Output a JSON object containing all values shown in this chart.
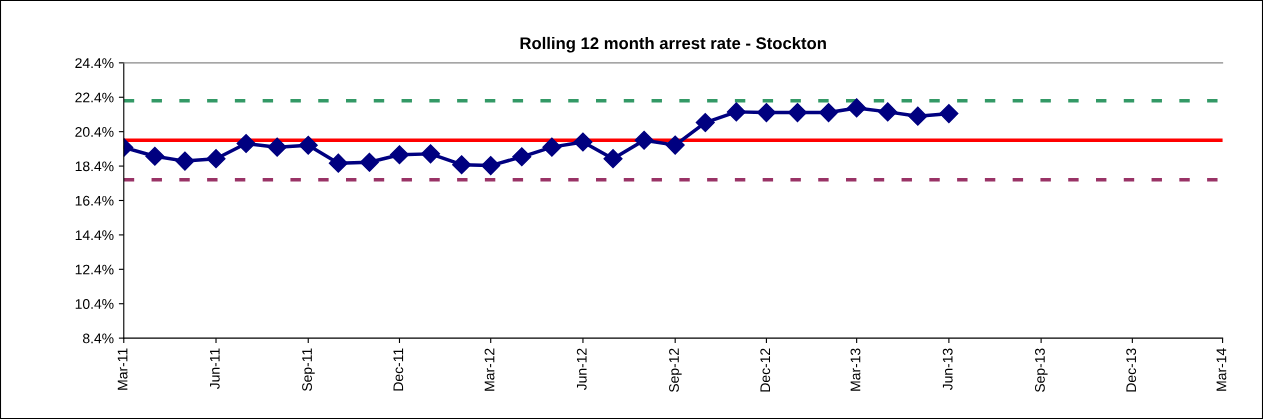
{
  "chart_data": {
    "type": "line",
    "title": "Rolling 12 month arrest rate - Stockton",
    "x": [
      "2011-03",
      "2011-04",
      "2011-05",
      "2011-06",
      "2011-07",
      "2011-08",
      "2011-09",
      "2011-10",
      "2011-11",
      "2011-12",
      "2012-01",
      "2012-02",
      "2012-03",
      "2012-04",
      "2012-05",
      "2012-06",
      "2012-07",
      "2012-08",
      "2012-09",
      "2012-10",
      "2012-11",
      "2012-12",
      "2013-01",
      "2013-02",
      "2013-03",
      "2013-04",
      "2013-05",
      "2013-06"
    ],
    "series": [
      {
        "color": "#000080",
        "values": [
          19.48,
          18.97,
          18.69,
          18.83,
          19.71,
          19.5,
          19.61,
          18.57,
          18.62,
          19.06,
          19.11,
          18.48,
          18.43,
          18.94,
          19.5,
          19.8,
          18.83,
          19.9,
          19.62,
          20.93,
          21.55,
          21.51,
          21.51,
          21.51,
          21.78,
          21.55,
          21.3,
          21.45
        ]
      }
    ],
    "marker": "diamond",
    "line_style": "solid",
    "grid": false,
    "legend": false,
    "xlim": [
      "2011-03",
      "2014-03"
    ],
    "xticks": [
      {
        "value": "2011-03",
        "label": "Mar-11"
      },
      {
        "value": "2011-06",
        "label": "Jun-11"
      },
      {
        "value": "2011-09",
        "label": "Sep-11"
      },
      {
        "value": "2011-12",
        "label": "Dec-11"
      },
      {
        "value": "2012-03",
        "label": "Mar-12"
      },
      {
        "value": "2012-06",
        "label": "Jun-12"
      },
      {
        "value": "2012-09",
        "label": "Sep-12"
      },
      {
        "value": "2012-12",
        "label": "Dec-12"
      },
      {
        "value": "2013-03",
        "label": "Mar-13"
      },
      {
        "value": "2013-06",
        "label": "Jun-13"
      },
      {
        "value": "2013-09",
        "label": "Sep-13"
      },
      {
        "value": "2013-12",
        "label": "Dec-13"
      },
      {
        "value": "2014-03",
        "label": "Mar-14"
      }
    ],
    "ylim": [
      8.4,
      24.4
    ],
    "yticks": [
      {
        "value": 8.4,
        "label": "8.4%"
      },
      {
        "value": 10.4,
        "label": "10.4%"
      },
      {
        "value": 12.4,
        "label": "12.4%"
      },
      {
        "value": 14.4,
        "label": "14.4%"
      },
      {
        "value": 16.4,
        "label": "16.4%"
      },
      {
        "value": 18.4,
        "label": "18.4%"
      },
      {
        "value": 20.4,
        "label": "20.4%"
      },
      {
        "value": 22.4,
        "label": "22.4%"
      },
      {
        "value": 24.4,
        "label": "24.4%"
      }
    ],
    "ref_lines": [
      {
        "axis": "y",
        "value": 19.9,
        "color": "#ff0000",
        "line_style": "solid"
      },
      {
        "axis": "y",
        "value": 22.2,
        "color": "#339966",
        "line_style": "dashed"
      },
      {
        "axis": "y",
        "value": 17.6,
        "color": "#993366",
        "line_style": "dashed"
      }
    ]
  }
}
